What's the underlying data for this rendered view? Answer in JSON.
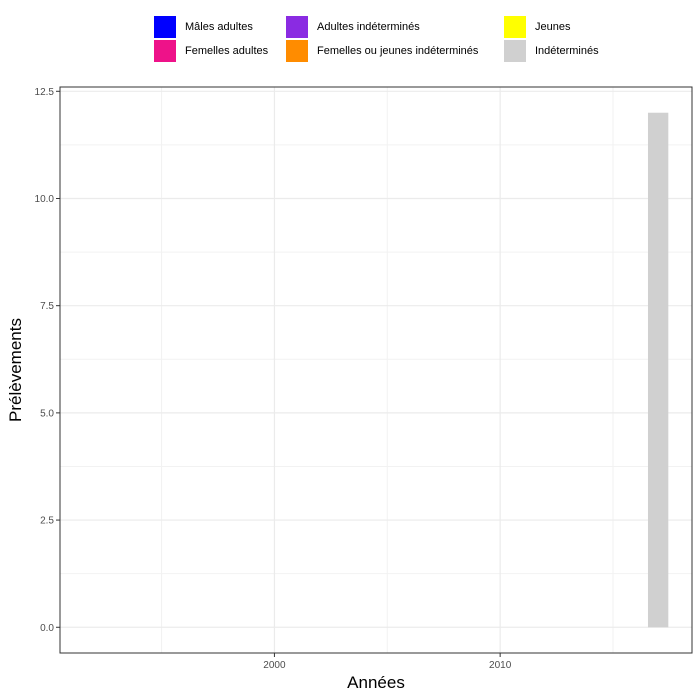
{
  "legend": {
    "items": [
      {
        "label": "Mâles adultes",
        "color": "#0000ff"
      },
      {
        "label": "Femelles adultes",
        "color": "#ee1289"
      },
      {
        "label": "Adultes indéterminés",
        "color": "#8a2be2"
      },
      {
        "label": "Femelles ou jeunes indéterminés",
        "color": "#ff8c00"
      },
      {
        "label": "Jeunes",
        "color": "#ffff00"
      },
      {
        "label": "Indéterminés",
        "color": "#d0d0d0"
      }
    ]
  },
  "chart_data": {
    "type": "bar",
    "stacked": true,
    "xlabel": "Années",
    "ylabel": "Prélèvements",
    "xlim": [
      1990.5,
      2018.5
    ],
    "ylim": [
      -0.6,
      12.6
    ],
    "x_ticks": [
      2000,
      2010
    ],
    "x_tick_labels": [
      "2000",
      "2010"
    ],
    "y_ticks": [
      0,
      2.5,
      5,
      7.5,
      10,
      12.5
    ],
    "y_tick_labels": [
      "0.0",
      "2.5",
      "5.0",
      "7.5",
      "10.0",
      "12.5"
    ],
    "x_minor_ticks": [
      1995,
      2005,
      2015
    ],
    "y_minor_ticks": [
      1.25,
      3.75,
      6.25,
      8.75,
      11.25
    ],
    "grid": true,
    "legend_position": "top",
    "series": [
      {
        "name": "Mâles adultes",
        "color": "#0000ff",
        "x": [],
        "values": []
      },
      {
        "name": "Femelles adultes",
        "color": "#ee1289",
        "x": [],
        "values": []
      },
      {
        "name": "Adultes indéterminés",
        "color": "#8a2be2",
        "x": [],
        "values": []
      },
      {
        "name": "Femelles ou jeunes indéterminés",
        "color": "#ff8c00",
        "x": [],
        "values": []
      },
      {
        "name": "Jeunes",
        "color": "#ffff00",
        "x": [],
        "values": []
      },
      {
        "name": "Indéterminés",
        "color": "#d0d0d0",
        "x": [
          2017
        ],
        "values": [
          12
        ]
      }
    ]
  }
}
